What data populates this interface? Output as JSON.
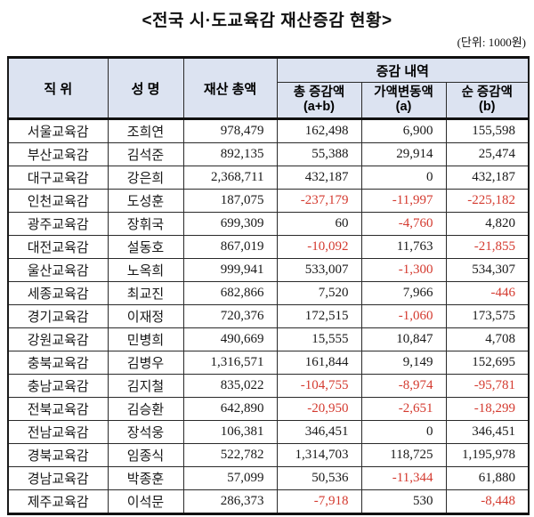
{
  "title": "<전국 시·도교육감 재산증감 현황>",
  "unit_label": "(단위: 1000원)",
  "colors": {
    "header_bg": "#dce3f1",
    "negative_value": "#d43a2f",
    "border": "#111111",
    "background": "#ffffff"
  },
  "table": {
    "headers": {
      "position": "직 위",
      "name": "성 명",
      "total_assets": "재산 총액",
      "change_group": "증감 내역",
      "total_change": "총 증감액",
      "total_change_sub": "(a+b)",
      "value_change": "가액변동액",
      "value_change_sub": "(a)",
      "net_change": "순 증감액",
      "net_change_sub": "(b)"
    },
    "rows": [
      {
        "position": "서울교육감",
        "name": "조희연",
        "total": "978,479",
        "total_change": "162,498",
        "value_change": "6,900",
        "net_change": "155,598"
      },
      {
        "position": "부산교육감",
        "name": "김석준",
        "total": "892,135",
        "total_change": "55,388",
        "value_change": "29,914",
        "net_change": "25,474"
      },
      {
        "position": "대구교육감",
        "name": "강은희",
        "total": "2,368,711",
        "total_change": "432,187",
        "value_change": "0",
        "net_change": "432,187"
      },
      {
        "position": "인천교육감",
        "name": "도성훈",
        "total": "187,075",
        "total_change": "-237,179",
        "value_change": "-11,997",
        "net_change": "-225,182"
      },
      {
        "position": "광주교육감",
        "name": "장휘국",
        "total": "699,309",
        "total_change": "60",
        "value_change": "-4,760",
        "net_change": "4,820"
      },
      {
        "position": "대전교육감",
        "name": "설동호",
        "total": "867,019",
        "total_change": "-10,092",
        "value_change": "11,763",
        "net_change": "-21,855"
      },
      {
        "position": "울산교육감",
        "name": "노옥희",
        "total": "999,941",
        "total_change": "533,007",
        "value_change": "-1,300",
        "net_change": "534,307"
      },
      {
        "position": "세종교육감",
        "name": "최교진",
        "total": "682,866",
        "total_change": "7,520",
        "value_change": "7,966",
        "net_change": "-446"
      },
      {
        "position": "경기교육감",
        "name": "이재정",
        "total": "720,376",
        "total_change": "172,515",
        "value_change": "-1,060",
        "net_change": "173,575"
      },
      {
        "position": "강원교육감",
        "name": "민병희",
        "total": "490,669",
        "total_change": "15,555",
        "value_change": "10,847",
        "net_change": "4,708"
      },
      {
        "position": "충북교육감",
        "name": "김병우",
        "total": "1,316,571",
        "total_change": "161,844",
        "value_change": "9,149",
        "net_change": "152,695"
      },
      {
        "position": "충남교육감",
        "name": "김지철",
        "total": "835,022",
        "total_change": "-104,755",
        "value_change": "-8,974",
        "net_change": "-95,781"
      },
      {
        "position": "전북교육감",
        "name": "김승환",
        "total": "642,890",
        "total_change": "-20,950",
        "value_change": "-2,651",
        "net_change": "-18,299"
      },
      {
        "position": "전남교육감",
        "name": "장석웅",
        "total": "106,381",
        "total_change": "346,451",
        "value_change": "0",
        "net_change": "346,451"
      },
      {
        "position": "경북교육감",
        "name": "임종식",
        "total": "522,782",
        "total_change": "1,314,703",
        "value_change": "118,725",
        "net_change": "1,195,978"
      },
      {
        "position": "경남교육감",
        "name": "박종훈",
        "total": "57,099",
        "total_change": "50,536",
        "value_change": "-11,344",
        "net_change": "61,880"
      },
      {
        "position": "제주교육감",
        "name": "이석문",
        "total": "286,373",
        "total_change": "-7,918",
        "value_change": "530",
        "net_change": "-8,448"
      }
    ]
  }
}
